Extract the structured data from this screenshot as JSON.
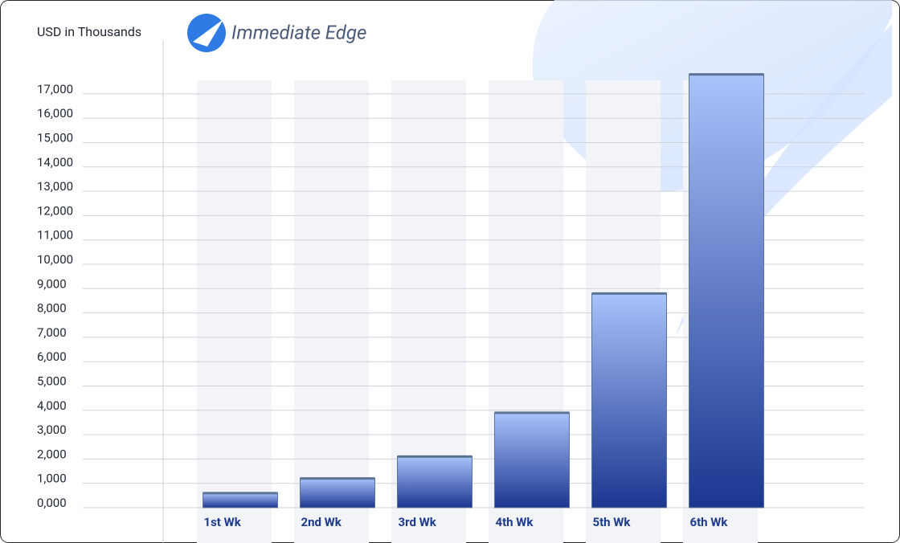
{
  "logo": "Immediate Edge",
  "chart_data": {
    "type": "bar",
    "y_label": "USD in Thousands",
    "categories": [
      "1st Wk",
      "2nd Wk",
      "3rd Wk",
      "4th Wk",
      "5th Wk",
      "6th Wk"
    ],
    "values": [
      600,
      1200,
      2100,
      3900,
      8800,
      17800
    ],
    "color": "#1a3690",
    "ylim": [
      0,
      18500
    ],
    "yticks": [
      {
        "value": 0,
        "label": "0,000"
      },
      {
        "value": 1000,
        "label": "1,000"
      },
      {
        "value": 2000,
        "label": "2,000"
      },
      {
        "value": 3000,
        "label": "3,000"
      },
      {
        "value": 4000,
        "label": "4,000"
      },
      {
        "value": 5000,
        "label": "5,000"
      },
      {
        "value": 6000,
        "label": "6,000"
      },
      {
        "value": 7000,
        "label": "7,000"
      },
      {
        "value": 8000,
        "label": "8,000"
      },
      {
        "value": 9000,
        "label": "9,000"
      },
      {
        "value": 10000,
        "label": "10,000"
      },
      {
        "value": 11000,
        "label": "11,000"
      },
      {
        "value": 12000,
        "label": "12,000"
      },
      {
        "value": 13000,
        "label": "13,000"
      },
      {
        "value": 14000,
        "label": "14,000"
      },
      {
        "value": 15000,
        "label": "15,000"
      },
      {
        "value": 16000,
        "label": "16,000"
      },
      {
        "value": 17000,
        "label": "17,000"
      }
    ],
    "grid": true
  }
}
